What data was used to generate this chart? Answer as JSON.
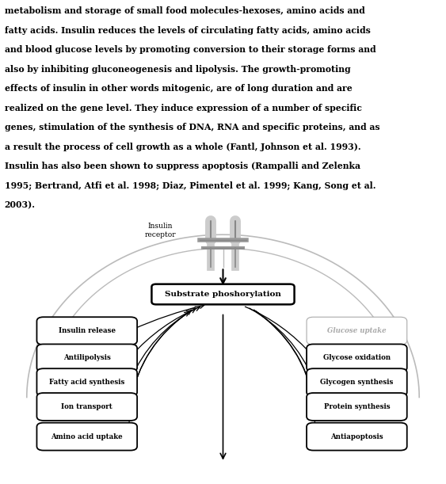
{
  "text_block": [
    "metabolism and storage of small food molecules-hexoses, amino acids and",
    "fatty acids. Insulin reduces the levels of circulating fatty acids, amino acids",
    "and blood glucose levels by promoting conversion to their storage forms and",
    "also by inhibiting gluconeogenesis and lipolysis. The growth-promoting",
    "effects of insulin in other words mitogenic, are of long duration and are",
    "realized on the gene level. They induce expression of a number of specific",
    "genes, stimulation of the synthesis of DNA, RNA and specific proteins, and as",
    "a result the process of cell growth as a whole (Fantl, Johnson et al. 1993).",
    "Insulin has also been shown to suppress apoptosis (Rampalli and Zelenka",
    "1995; Bertrand, Atfi et al. 1998; Diaz, Pimentel et al. 1999; Kang, Song et al.",
    "2003)."
  ],
  "bg_color": "#ffffff",
  "text_color": "#000000",
  "center_box_label": "Substrate phoshorylation",
  "left_boxes": [
    {
      "label": "Insulin release",
      "row": 0
    },
    {
      "label": "Antilipolysis",
      "row": 1
    },
    {
      "label": "Fatty acid synthesis",
      "row": 2
    },
    {
      "label": "Ion transport",
      "row": 3
    },
    {
      "label": "Amino acid uptake",
      "row": 4
    }
  ],
  "right_boxes": [
    {
      "label": "Glucose uptake",
      "row": 0,
      "light": true
    },
    {
      "label": "Glycose oxidation",
      "row": 1
    },
    {
      "label": "Glycogen synthesis",
      "row": 2
    },
    {
      "label": "Protein synthesis",
      "row": 3
    },
    {
      "label": "Antiapoptosis",
      "row": 4
    }
  ],
  "insulin_receptor_label": "Insulin\nreceptor",
  "arch_color": "#bbbbbb",
  "arrow_color": "#000000"
}
